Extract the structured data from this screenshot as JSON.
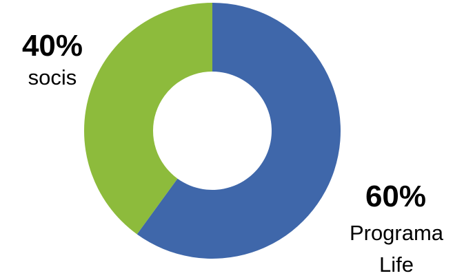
{
  "chart_data": {
    "type": "pie",
    "variant": "donut",
    "slices": [
      {
        "label": "Programa Life",
        "value": 60,
        "color": "#3f67aa"
      },
      {
        "label": "socis",
        "value": 40,
        "color": "#8dbb3c"
      }
    ],
    "labels": {
      "socis": {
        "percent": "40%",
        "name": "socis"
      },
      "life": {
        "percent": "60%",
        "name_line1": "Programa",
        "name_line2": "Life"
      }
    },
    "legend": "none"
  }
}
